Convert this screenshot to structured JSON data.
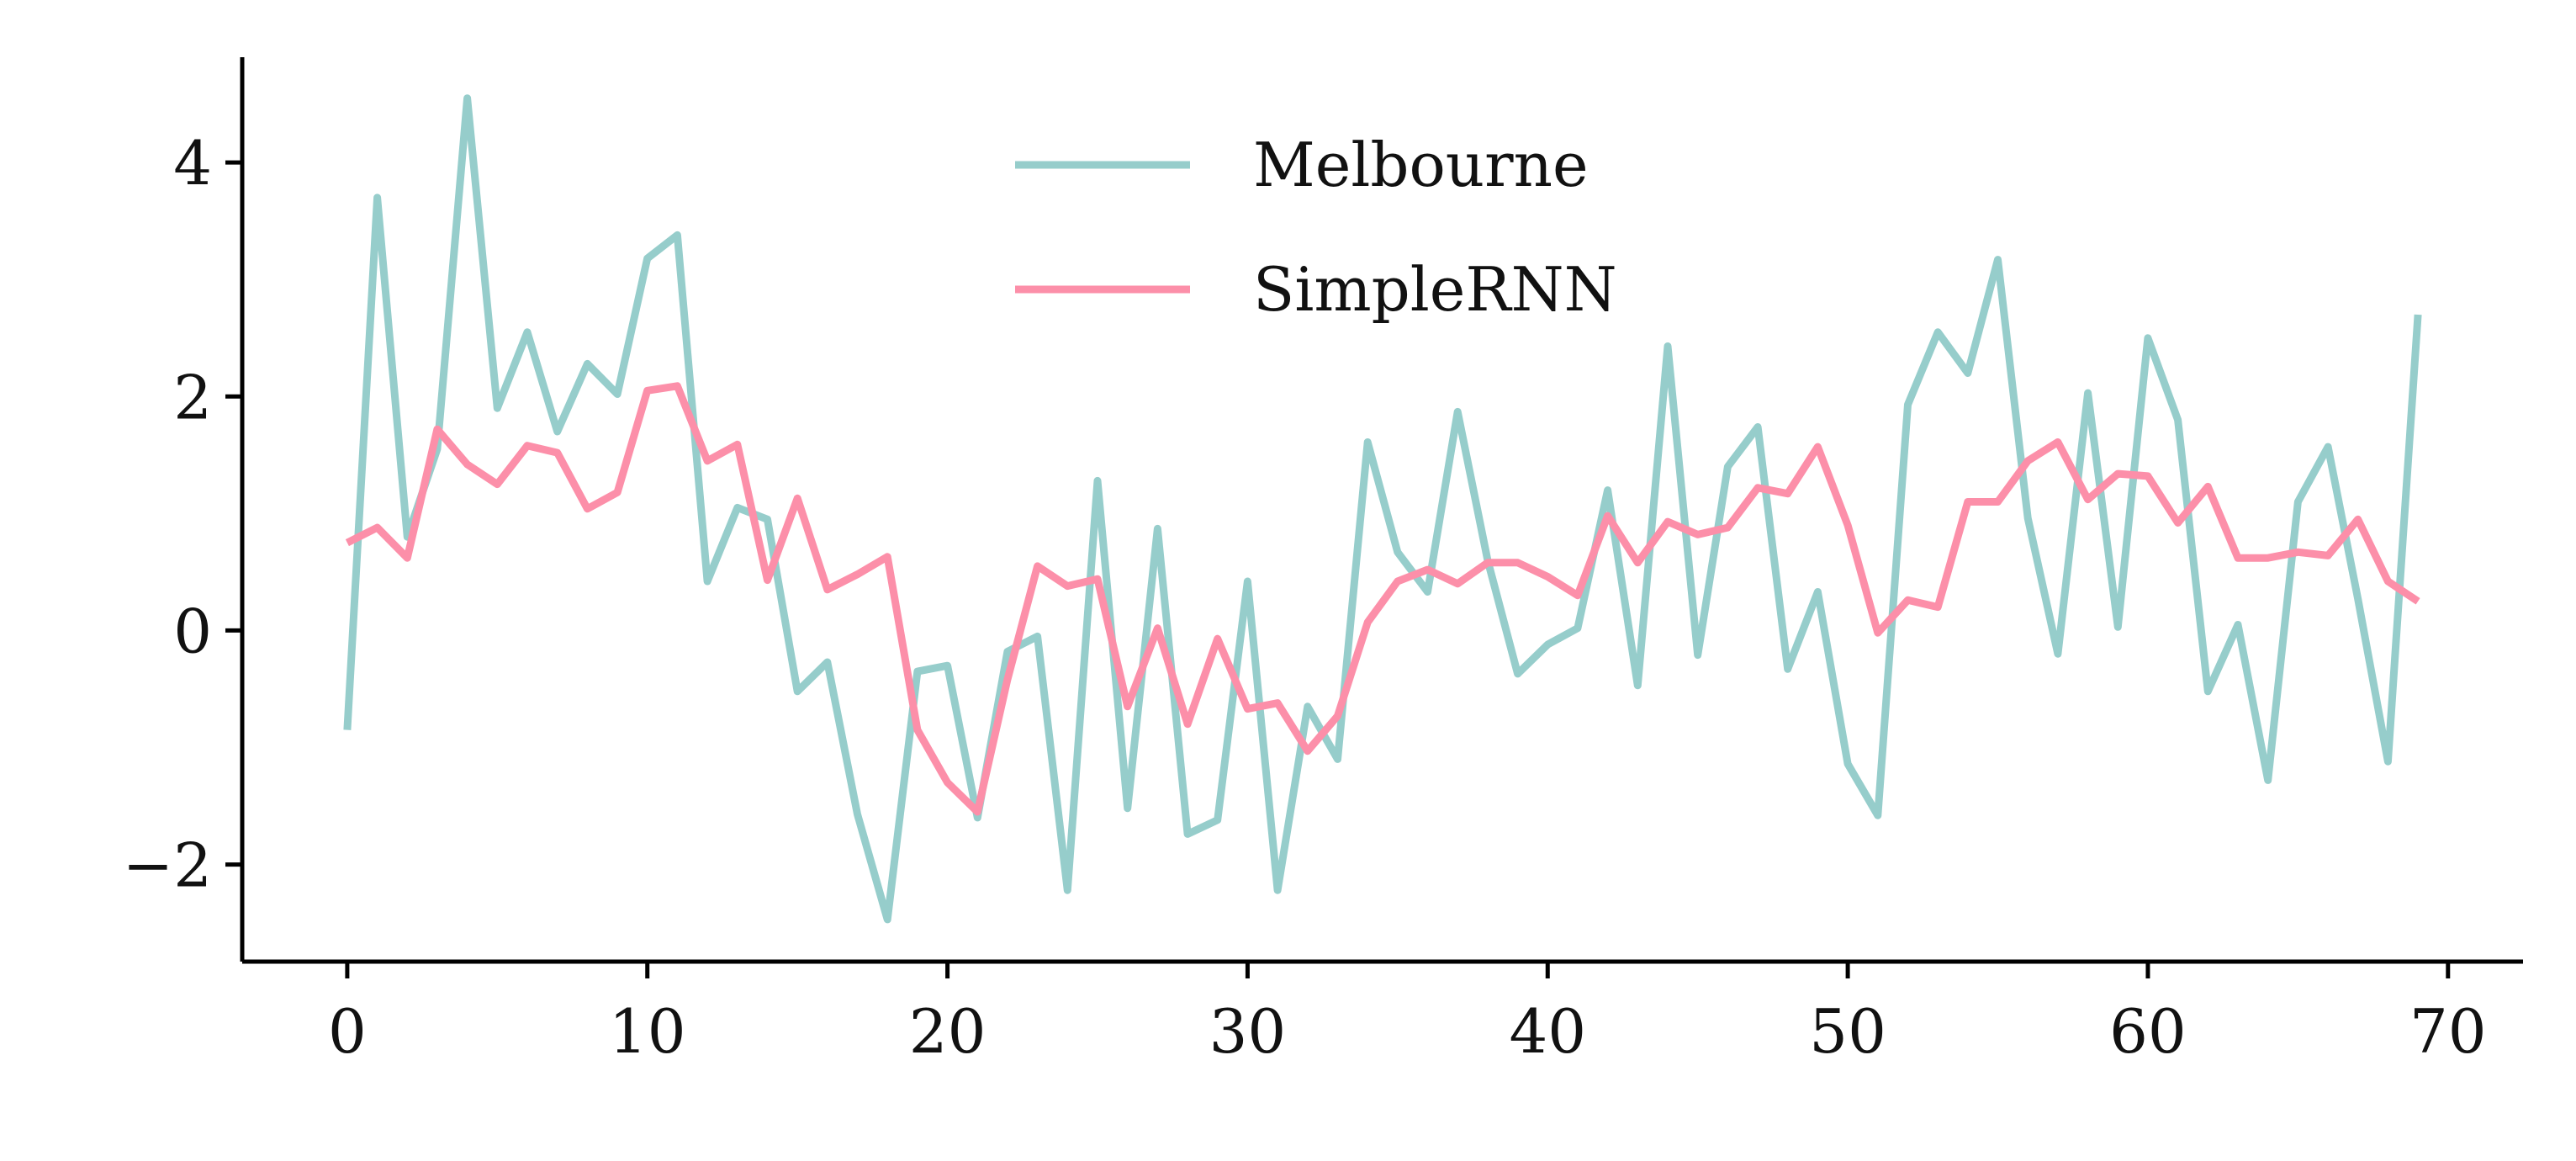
{
  "chart_data": {
    "type": "line",
    "title": "",
    "xlabel": "",
    "ylabel": "",
    "xlim": [
      -3.5,
      72.5
    ],
    "ylim": [
      -2.83,
      4.9
    ],
    "x_ticks": [
      0,
      10,
      20,
      30,
      40,
      50,
      60,
      70
    ],
    "y_ticks": [
      -2,
      0,
      2,
      4
    ],
    "x_tick_labels": [
      "0",
      "10",
      "20",
      "30",
      "40",
      "50",
      "60",
      "70"
    ],
    "y_tick_labels": [
      "−2",
      "0",
      "2",
      "4"
    ],
    "grid": false,
    "legend_position": "top-center",
    "x": [
      0,
      1,
      2,
      3,
      4,
      5,
      6,
      7,
      8,
      9,
      10,
      11,
      12,
      13,
      14,
      15,
      16,
      17,
      18,
      19,
      20,
      21,
      22,
      23,
      24,
      25,
      26,
      27,
      28,
      29,
      30,
      31,
      32,
      33,
      34,
      35,
      36,
      37,
      38,
      39,
      40,
      41,
      42,
      43,
      44,
      45,
      46,
      47,
      48,
      49,
      50,
      51,
      52,
      53,
      54,
      55,
      56,
      57,
      58,
      59,
      60,
      61,
      62,
      63,
      64,
      65,
      66,
      67,
      68,
      69
    ],
    "series": [
      {
        "name": "Melbourne",
        "color": "#96cdcb",
        "values": [
          -0.85,
          3.7,
          0.8,
          1.55,
          4.55,
          1.9,
          2.55,
          1.7,
          2.28,
          2.02,
          3.18,
          3.38,
          0.42,
          1.05,
          0.95,
          -0.52,
          -0.27,
          -1.57,
          -2.47,
          -0.35,
          -0.3,
          -1.6,
          -0.18,
          -0.05,
          -2.22,
          1.28,
          -1.52,
          0.87,
          -1.74,
          -1.62,
          0.42,
          -2.22,
          -0.65,
          -1.1,
          1.61,
          0.67,
          0.33,
          1.87,
          0.6,
          -0.37,
          -0.12,
          0.02,
          1.2,
          -0.47,
          2.43,
          -0.21,
          1.4,
          1.74,
          -0.33,
          0.33,
          -1.14,
          -1.58,
          1.93,
          2.55,
          2.2,
          3.17,
          0.96,
          -0.2,
          2.03,
          0.03,
          2.5,
          1.8,
          -0.52,
          0.05,
          -1.28,
          1.1,
          1.57,
          0.27,
          -1.12,
          2.7
        ]
      },
      {
        "name": "SimpleRNN",
        "color": "#fc8fa9",
        "values": [
          0.75,
          0.88,
          0.62,
          1.72,
          1.42,
          1.25,
          1.58,
          1.52,
          1.04,
          1.18,
          2.05,
          2.09,
          1.45,
          1.59,
          0.43,
          1.13,
          0.35,
          0.48,
          0.63,
          -0.85,
          -1.3,
          -1.55,
          -0.42,
          0.55,
          0.38,
          0.44,
          -0.65,
          0.02,
          -0.8,
          -0.07,
          -0.67,
          -0.62,
          -1.03,
          -0.73,
          0.07,
          0.42,
          0.52,
          0.4,
          0.58,
          0.58,
          0.46,
          0.3,
          0.98,
          0.58,
          0.93,
          0.82,
          0.88,
          1.22,
          1.17,
          1.57,
          0.9,
          -0.02,
          0.26,
          0.2,
          1.1,
          1.1,
          1.45,
          1.61,
          1.12,
          1.34,
          1.32,
          0.92,
          1.23,
          0.62,
          0.62,
          0.67,
          0.64,
          0.95,
          0.42,
          0.25
        ]
      }
    ]
  }
}
